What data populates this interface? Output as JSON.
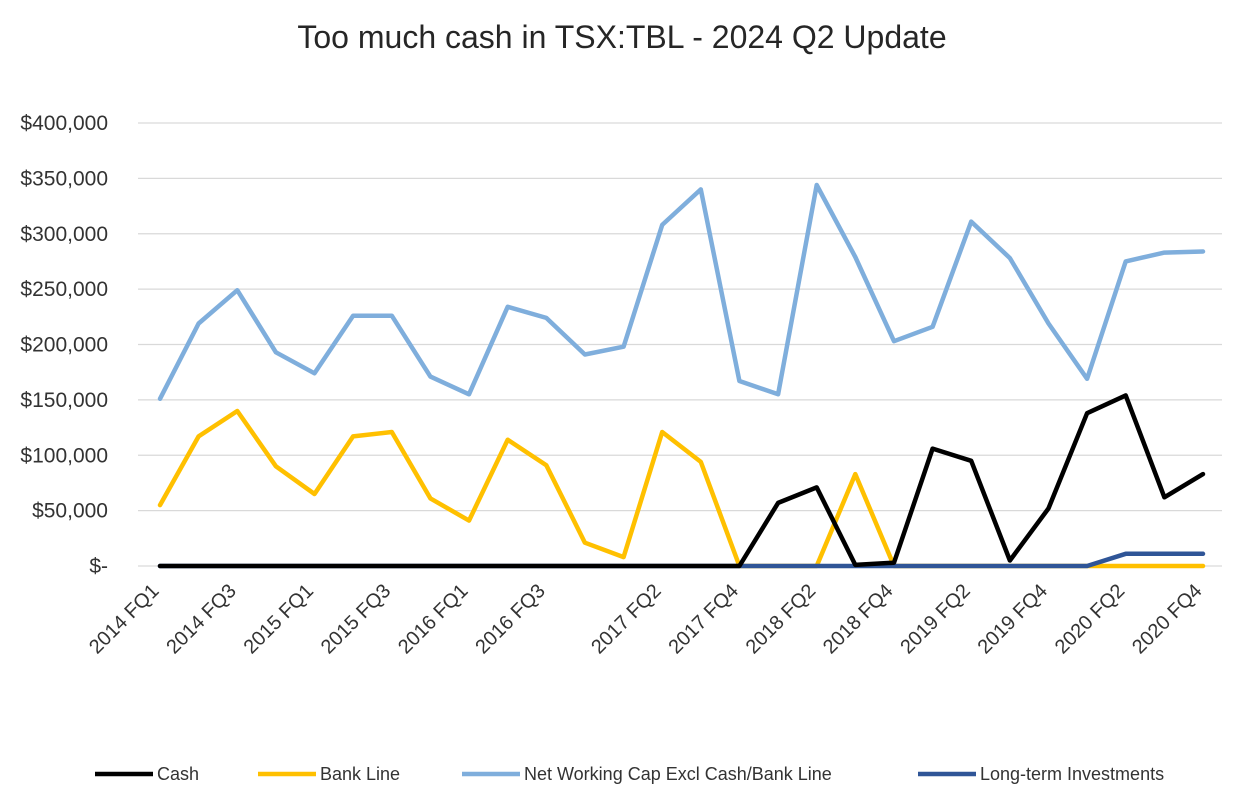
{
  "chart_data": {
    "type": "line",
    "title": "Too much cash in TSX:TBL - 2024 Q2 Update",
    "xlabel": "",
    "ylabel": "",
    "ylim": [
      0,
      400000
    ],
    "yticks": [
      {
        "value": 0,
        "label": "$-"
      },
      {
        "value": 50000,
        "label": "$50,000"
      },
      {
        "value": 100000,
        "label": "$100,000"
      },
      {
        "value": 150000,
        "label": "$150,000"
      },
      {
        "value": 200000,
        "label": "$200,000"
      },
      {
        "value": 250000,
        "label": "$250,000"
      },
      {
        "value": 300000,
        "label": "$300,000"
      },
      {
        "value": 350000,
        "label": "$350,000"
      },
      {
        "value": 400000,
        "label": "$400,000"
      }
    ],
    "x": [
      "2014 FQ1",
      "2014 FQ2",
      "2014 FQ3",
      "2014 FQ4",
      "2015 FQ1",
      "2015 FQ2",
      "2015 FQ3",
      "2015 FQ4",
      "2016 FQ1",
      "2016 FQ2",
      "2016 FQ3",
      "2016 FQ4",
      "2017 FQ1",
      "2017 FQ2",
      "2017 FQ3",
      "2017 FQ4",
      "2018 FQ1",
      "2018 FQ2",
      "2018 FQ3",
      "2018 FQ4",
      "2019 FQ1",
      "2019 FQ2",
      "2019 FQ3",
      "2019 FQ4",
      "2020 FQ1",
      "2020 FQ2",
      "2020 FQ3",
      "2020 FQ4"
    ],
    "xtick_labels": [
      {
        "index": 0,
        "label": "2014 FQ1"
      },
      {
        "index": 2,
        "label": "2014 FQ3"
      },
      {
        "index": 4,
        "label": "2015 FQ1"
      },
      {
        "index": 6,
        "label": "2015 FQ3"
      },
      {
        "index": 8,
        "label": "2016 FQ1"
      },
      {
        "index": 10,
        "label": "2016 FQ3"
      },
      {
        "index": 13,
        "label": "2017 FQ2"
      },
      {
        "index": 15,
        "label": "2017 FQ4"
      },
      {
        "index": 17,
        "label": "2018 FQ2"
      },
      {
        "index": 19,
        "label": "2018 FQ4"
      },
      {
        "index": 21,
        "label": "2019 FQ2"
      },
      {
        "index": 23,
        "label": "2019 FQ4"
      },
      {
        "index": 25,
        "label": "2020 FQ2"
      },
      {
        "index": 27,
        "label": "2020 FQ4"
      }
    ],
    "grid": true,
    "legend": "bottom",
    "series": [
      {
        "name": "Cash",
        "color": "#000000",
        "values": [
          0,
          0,
          0,
          0,
          0,
          0,
          0,
          0,
          0,
          0,
          0,
          0,
          0,
          0,
          0,
          0,
          57000,
          71000,
          1000,
          3000,
          106000,
          95000,
          5000,
          52000,
          138000,
          154000,
          62000,
          83000
        ]
      },
      {
        "name": "Bank Line",
        "color": "#FFC000",
        "values": [
          55000,
          117000,
          140000,
          90000,
          65000,
          117000,
          121000,
          61000,
          41000,
          114000,
          91000,
          21000,
          8000,
          121000,
          94000,
          0,
          0,
          0,
          83000,
          0,
          0,
          0,
          0,
          0,
          0,
          0,
          0,
          0
        ]
      },
      {
        "name": "Net Working Cap Excl Cash/Bank Line",
        "color": "#7FAEDC",
        "values": [
          151000,
          219000,
          249000,
          193000,
          174000,
          226000,
          226000,
          171000,
          155000,
          234000,
          224000,
          191000,
          198000,
          308000,
          340000,
          167000,
          155000,
          344000,
          279000,
          203000,
          216000,
          311000,
          278000,
          219000,
          169000,
          275000,
          283000,
          284000
        ]
      },
      {
        "name": "Long-term Investments",
        "color": "#2F5597",
        "values": [
          0,
          0,
          0,
          0,
          0,
          0,
          0,
          0,
          0,
          0,
          0,
          0,
          0,
          0,
          0,
          0,
          0,
          0,
          0,
          0,
          0,
          0,
          0,
          0,
          0,
          11000,
          11000,
          11000
        ]
      }
    ]
  }
}
